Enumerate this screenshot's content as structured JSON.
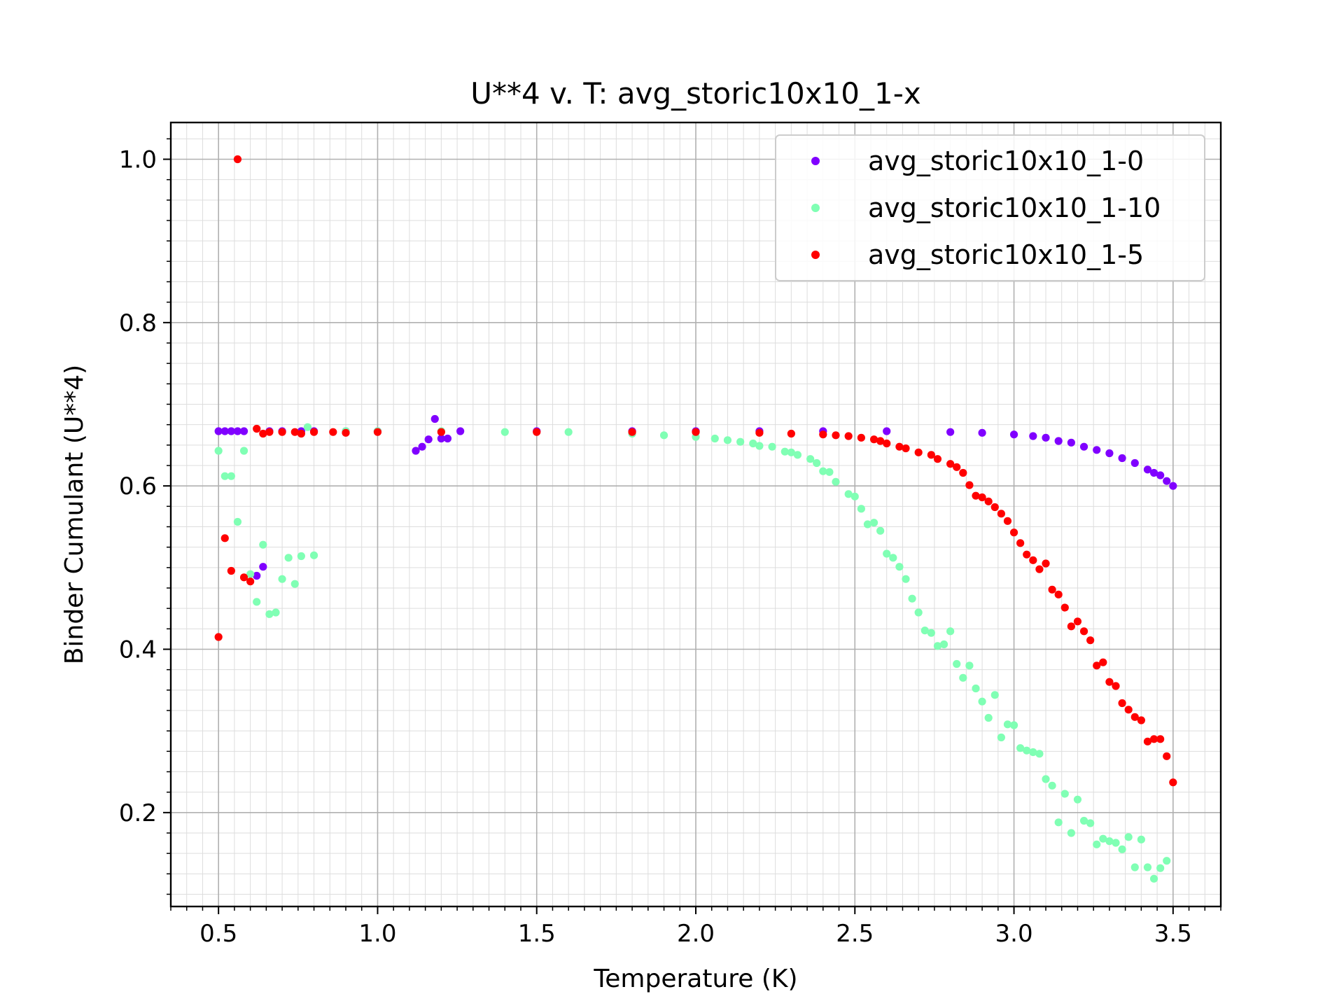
{
  "chart_data": {
    "type": "scatter",
    "title": "U**4 v. T: avg_storic10x10_1-x",
    "xlabel": "Temperature (K)",
    "ylabel": "Binder Cumulant (U**4)",
    "xlim": [
      0.35,
      3.65
    ],
    "ylim": [
      0.085,
      1.045
    ],
    "xticks": [
      "0.5",
      "1.0",
      "1.5",
      "2.0",
      "2.5",
      "3.0",
      "3.5"
    ],
    "yticks": [
      "0.2",
      "0.4",
      "0.6",
      "0.8",
      "1.0"
    ],
    "grid": true,
    "minor_grid": true,
    "legend_position": "top-right",
    "series": [
      {
        "name": "avg_storic10x10_1-0",
        "color": "#8000ff",
        "points": [
          [
            0.5,
            0.667
          ],
          [
            0.52,
            0.667
          ],
          [
            0.54,
            0.667
          ],
          [
            0.56,
            0.667
          ],
          [
            0.58,
            0.667
          ],
          [
            0.62,
            0.49
          ],
          [
            0.64,
            0.501
          ],
          [
            0.66,
            0.667
          ],
          [
            0.7,
            0.667
          ],
          [
            0.76,
            0.667
          ],
          [
            0.8,
            0.667
          ],
          [
            0.9,
            0.667
          ],
          [
            1.0,
            0.667
          ],
          [
            1.12,
            0.643
          ],
          [
            1.14,
            0.648
          ],
          [
            1.16,
            0.657
          ],
          [
            1.18,
            0.682
          ],
          [
            1.2,
            0.658
          ],
          [
            1.22,
            0.658
          ],
          [
            1.26,
            0.667
          ],
          [
            1.5,
            0.667
          ],
          [
            1.8,
            0.667
          ],
          [
            2.0,
            0.667
          ],
          [
            2.2,
            0.667
          ],
          [
            2.4,
            0.667
          ],
          [
            2.6,
            0.667
          ],
          [
            2.8,
            0.666
          ],
          [
            2.9,
            0.665
          ],
          [
            3.0,
            0.663
          ],
          [
            3.06,
            0.661
          ],
          [
            3.1,
            0.659
          ],
          [
            3.14,
            0.655
          ],
          [
            3.18,
            0.653
          ],
          [
            3.22,
            0.648
          ],
          [
            3.26,
            0.644
          ],
          [
            3.3,
            0.64
          ],
          [
            3.34,
            0.634
          ],
          [
            3.38,
            0.628
          ],
          [
            3.42,
            0.62
          ],
          [
            3.44,
            0.616
          ],
          [
            3.46,
            0.613
          ],
          [
            3.48,
            0.606
          ],
          [
            3.5,
            0.6
          ]
        ]
      },
      {
        "name": "avg_storic10x10_1-10",
        "color": "#80ffb4",
        "points": [
          [
            0.5,
            0.643
          ],
          [
            0.52,
            0.612
          ],
          [
            0.54,
            0.612
          ],
          [
            0.56,
            0.556
          ],
          [
            0.58,
            0.643
          ],
          [
            0.6,
            0.492
          ],
          [
            0.62,
            0.458
          ],
          [
            0.64,
            0.528
          ],
          [
            0.66,
            0.443
          ],
          [
            0.68,
            0.445
          ],
          [
            0.7,
            0.486
          ],
          [
            0.72,
            0.512
          ],
          [
            0.74,
            0.48
          ],
          [
            0.76,
            0.514
          ],
          [
            0.8,
            0.515
          ],
          [
            0.78,
            0.672
          ],
          [
            0.9,
            0.667
          ],
          [
            1.0,
            0.667
          ],
          [
            1.2,
            0.667
          ],
          [
            1.4,
            0.666
          ],
          [
            1.6,
            0.666
          ],
          [
            1.8,
            0.664
          ],
          [
            1.9,
            0.662
          ],
          [
            2.0,
            0.66
          ],
          [
            2.06,
            0.658
          ],
          [
            2.1,
            0.656
          ],
          [
            2.14,
            0.654
          ],
          [
            2.18,
            0.652
          ],
          [
            2.2,
            0.649
          ],
          [
            2.24,
            0.648
          ],
          [
            2.28,
            0.642
          ],
          [
            2.3,
            0.641
          ],
          [
            2.32,
            0.638
          ],
          [
            2.36,
            0.633
          ],
          [
            2.38,
            0.628
          ],
          [
            2.4,
            0.618
          ],
          [
            2.42,
            0.617
          ],
          [
            2.44,
            0.605
          ],
          [
            2.48,
            0.59
          ],
          [
            2.5,
            0.587
          ],
          [
            2.52,
            0.572
          ],
          [
            2.54,
            0.553
          ],
          [
            2.56,
            0.555
          ],
          [
            2.58,
            0.545
          ],
          [
            2.6,
            0.517
          ],
          [
            2.62,
            0.512
          ],
          [
            2.64,
            0.501
          ],
          [
            2.66,
            0.486
          ],
          [
            2.68,
            0.462
          ],
          [
            2.7,
            0.445
          ],
          [
            2.72,
            0.423
          ],
          [
            2.74,
            0.42
          ],
          [
            2.76,
            0.404
          ],
          [
            2.78,
            0.406
          ],
          [
            2.8,
            0.422
          ],
          [
            2.82,
            0.382
          ],
          [
            2.84,
            0.365
          ],
          [
            2.86,
            0.38
          ],
          [
            2.88,
            0.352
          ],
          [
            2.9,
            0.336
          ],
          [
            2.92,
            0.316
          ],
          [
            2.94,
            0.344
          ],
          [
            2.96,
            0.292
          ],
          [
            2.98,
            0.308
          ],
          [
            3.0,
            0.307
          ],
          [
            3.02,
            0.279
          ],
          [
            3.04,
            0.276
          ],
          [
            3.06,
            0.274
          ],
          [
            3.08,
            0.272
          ],
          [
            3.1,
            0.241
          ],
          [
            3.12,
            0.233
          ],
          [
            3.14,
            0.188
          ],
          [
            3.16,
            0.223
          ],
          [
            3.18,
            0.175
          ],
          [
            3.2,
            0.216
          ],
          [
            3.22,
            0.19
          ],
          [
            3.24,
            0.187
          ],
          [
            3.26,
            0.161
          ],
          [
            3.28,
            0.168
          ],
          [
            3.3,
            0.165
          ],
          [
            3.32,
            0.163
          ],
          [
            3.34,
            0.155
          ],
          [
            3.36,
            0.17
          ],
          [
            3.38,
            0.133
          ],
          [
            3.4,
            0.167
          ],
          [
            3.42,
            0.133
          ],
          [
            3.44,
            0.119
          ],
          [
            3.46,
            0.132
          ],
          [
            3.48,
            0.141
          ]
        ]
      },
      {
        "name": "avg_storic10x10_1-5",
        "color": "#ff0000",
        "points": [
          [
            0.5,
            0.415
          ],
          [
            0.52,
            0.536
          ],
          [
            0.54,
            0.496
          ],
          [
            0.56,
            1.0
          ],
          [
            0.58,
            0.488
          ],
          [
            0.6,
            0.483
          ],
          [
            0.62,
            0.67
          ],
          [
            0.64,
            0.664
          ],
          [
            0.66,
            0.666
          ],
          [
            0.7,
            0.666
          ],
          [
            0.74,
            0.666
          ],
          [
            0.76,
            0.664
          ],
          [
            0.8,
            0.666
          ],
          [
            0.86,
            0.666
          ],
          [
            0.9,
            0.665
          ],
          [
            1.0,
            0.666
          ],
          [
            1.2,
            0.666
          ],
          [
            1.5,
            0.666
          ],
          [
            1.8,
            0.666
          ],
          [
            2.0,
            0.666
          ],
          [
            2.2,
            0.665
          ],
          [
            2.3,
            0.664
          ],
          [
            2.4,
            0.663
          ],
          [
            2.44,
            0.662
          ],
          [
            2.48,
            0.661
          ],
          [
            2.52,
            0.659
          ],
          [
            2.56,
            0.657
          ],
          [
            2.58,
            0.655
          ],
          [
            2.6,
            0.652
          ],
          [
            2.64,
            0.648
          ],
          [
            2.66,
            0.646
          ],
          [
            2.7,
            0.641
          ],
          [
            2.74,
            0.638
          ],
          [
            2.76,
            0.633
          ],
          [
            2.8,
            0.627
          ],
          [
            2.82,
            0.623
          ],
          [
            2.84,
            0.616
          ],
          [
            2.86,
            0.601
          ],
          [
            2.88,
            0.588
          ],
          [
            2.9,
            0.586
          ],
          [
            2.92,
            0.581
          ],
          [
            2.94,
            0.574
          ],
          [
            2.96,
            0.566
          ],
          [
            2.98,
            0.557
          ],
          [
            3.0,
            0.543
          ],
          [
            3.02,
            0.53
          ],
          [
            3.04,
            0.516
          ],
          [
            3.06,
            0.509
          ],
          [
            3.08,
            0.498
          ],
          [
            3.1,
            0.505
          ],
          [
            3.12,
            0.473
          ],
          [
            3.14,
            0.467
          ],
          [
            3.16,
            0.451
          ],
          [
            3.18,
            0.428
          ],
          [
            3.2,
            0.434
          ],
          [
            3.22,
            0.422
          ],
          [
            3.24,
            0.411
          ],
          [
            3.26,
            0.38
          ],
          [
            3.28,
            0.384
          ],
          [
            3.3,
            0.36
          ],
          [
            3.32,
            0.355
          ],
          [
            3.34,
            0.334
          ],
          [
            3.36,
            0.326
          ],
          [
            3.38,
            0.317
          ],
          [
            3.4,
            0.313
          ],
          [
            3.42,
            0.287
          ],
          [
            3.44,
            0.29
          ],
          [
            3.46,
            0.29
          ],
          [
            3.48,
            0.269
          ],
          [
            3.5,
            0.237
          ]
        ]
      }
    ]
  }
}
